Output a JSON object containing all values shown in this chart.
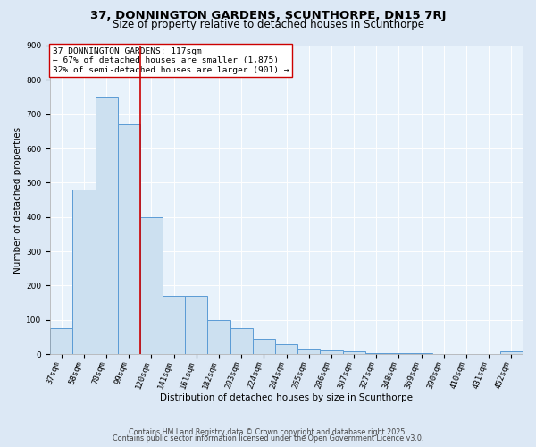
{
  "title1": "37, DONNINGTON GARDENS, SCUNTHORPE, DN15 7RJ",
  "title2": "Size of property relative to detached houses in Scunthorpe",
  "xlabel": "Distribution of detached houses by size in Scunthorpe",
  "ylabel": "Number of detached properties",
  "categories": [
    "37sqm",
    "58sqm",
    "78sqm",
    "99sqm",
    "120sqm",
    "141sqm",
    "161sqm",
    "182sqm",
    "203sqm",
    "224sqm",
    "244sqm",
    "265sqm",
    "286sqm",
    "307sqm",
    "327sqm",
    "348sqm",
    "369sqm",
    "390sqm",
    "410sqm",
    "431sqm",
    "452sqm"
  ],
  "values": [
    75,
    480,
    750,
    670,
    400,
    170,
    170,
    100,
    75,
    45,
    30,
    15,
    12,
    8,
    4,
    3,
    2,
    1,
    1,
    1,
    8
  ],
  "bar_color": "#cce0f0",
  "bar_edge_color": "#5b9bd5",
  "vline_x_index": 4,
  "vline_color": "#cc0000",
  "annotation_text": "37 DONNINGTON GARDENS: 117sqm\n← 67% of detached houses are smaller (1,875)\n32% of semi-detached houses are larger (901) →",
  "annotation_box_color": "#ffffff",
  "annotation_box_edge": "#cc0000",
  "ylim": [
    0,
    900
  ],
  "yticks": [
    0,
    100,
    200,
    300,
    400,
    500,
    600,
    700,
    800,
    900
  ],
  "background_color": "#dce8f5",
  "plot_bg_color": "#e8f2fb",
  "footer1": "Contains HM Land Registry data © Crown copyright and database right 2025.",
  "footer2": "Contains public sector information licensed under the Open Government Licence v3.0.",
  "title_fontsize": 9.5,
  "subtitle_fontsize": 8.5,
  "axis_label_fontsize": 7.5,
  "tick_fontsize": 6.5,
  "annotation_fontsize": 6.8,
  "footer_fontsize": 5.8
}
